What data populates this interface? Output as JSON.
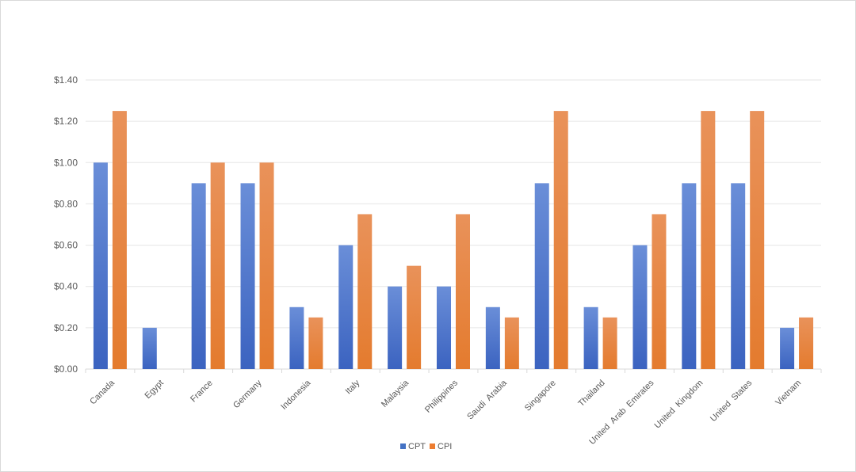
{
  "chart_data": {
    "type": "bar",
    "title": "",
    "xlabel": "",
    "ylabel": "",
    "ylim": [
      0,
      1.4
    ],
    "y_ticks": [
      "$0.00",
      "$0.20",
      "$0.40",
      "$0.60",
      "$0.80",
      "$1.00",
      "$1.20",
      "$1.40"
    ],
    "grid": true,
    "legend_position": "bottom-center",
    "categories": [
      "Canada",
      "Egypt",
      "France",
      "Germany",
      "Indonesia",
      "Italy",
      "Malaysia",
      "Philippines",
      "Saudi  Arabia",
      "Singapore",
      "Thailand",
      "United  Arab  Emirates",
      "United  Kingdom",
      "United  States",
      "Vietnam"
    ],
    "series": [
      {
        "name": "CPT",
        "color": "#4472c4",
        "values": [
          1.0,
          0.2,
          0.9,
          0.9,
          0.3,
          0.6,
          0.4,
          0.4,
          0.3,
          0.9,
          0.3,
          0.6,
          0.9,
          0.9,
          0.2
        ]
      },
      {
        "name": "CPI",
        "color": "#ed7d31",
        "values": [
          1.25,
          0,
          1.0,
          1.0,
          0.25,
          0.75,
          0.5,
          0.75,
          0.25,
          1.25,
          0.25,
          0.75,
          1.25,
          1.25,
          0.25
        ]
      }
    ]
  }
}
